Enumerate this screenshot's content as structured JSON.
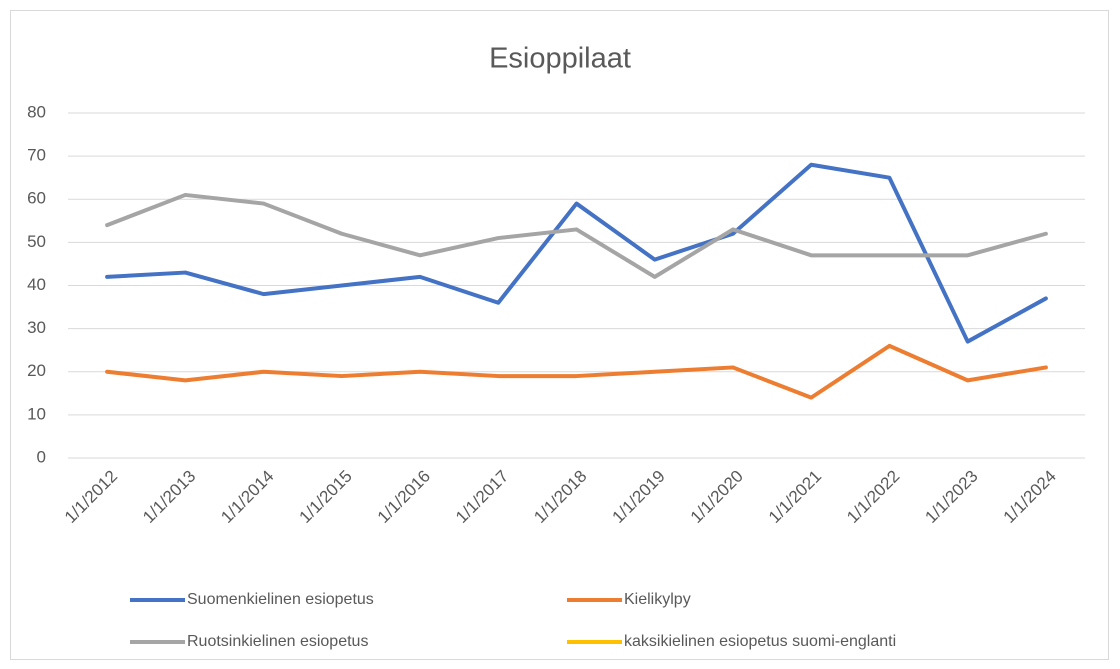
{
  "chart_data": {
    "type": "line",
    "title": "Esioppilaat",
    "categories": [
      "1/1/2012",
      "1/1/2013",
      "1/1/2014",
      "1/1/2015",
      "1/1/2016",
      "1/1/2017",
      "1/1/2018",
      "1/1/2019",
      "1/1/2020",
      "1/1/2021",
      "1/1/2022",
      "1/1/2023",
      "1/1/2024"
    ],
    "series": [
      {
        "name": "Suomenkielinen esiopetus",
        "color": "#4472c4",
        "values": [
          42,
          43,
          38,
          40,
          42,
          36,
          59,
          46,
          52,
          68,
          65,
          27,
          37
        ]
      },
      {
        "name": "Kielikylpy",
        "color": "#ed7d31",
        "values": [
          20,
          18,
          20,
          19,
          20,
          19,
          19,
          20,
          21,
          14,
          26,
          18,
          21
        ]
      },
      {
        "name": "Ruotsinkielinen esiopetus",
        "color": "#a5a5a5",
        "values": [
          54,
          61,
          59,
          52,
          47,
          51,
          53,
          42,
          53,
          47,
          47,
          47,
          52
        ]
      },
      {
        "name": "kaksikielinen esiopetus suomi-englanti",
        "color": "#ffc000",
        "values": [
          null,
          null,
          null,
          null,
          null,
          null,
          null,
          null,
          null,
          null,
          null,
          null,
          null
        ]
      }
    ],
    "ylim": [
      0,
      80
    ],
    "yticks": [
      0,
      10,
      20,
      30,
      40,
      50,
      60,
      70,
      80
    ],
    "grid": true,
    "legend": "bottom"
  }
}
